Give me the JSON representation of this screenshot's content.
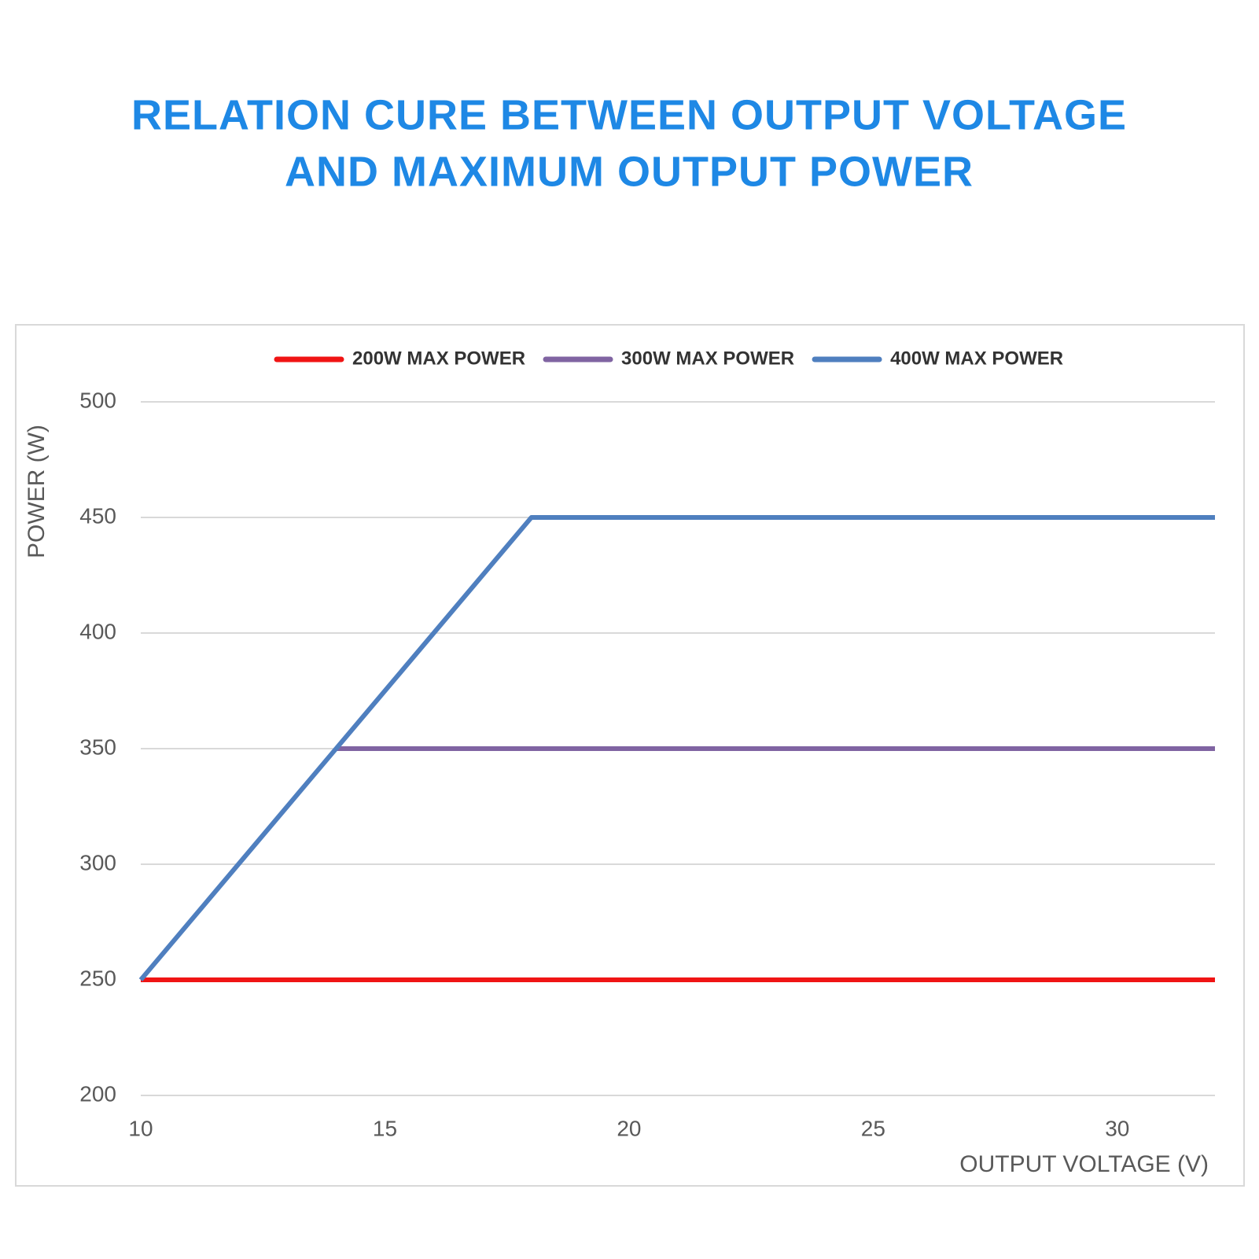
{
  "chart_data": {
    "type": "line",
    "title": [
      "RELATION CURE BETWEEN OUTPUT VOLTAGE",
      "AND MAXIMUM OUTPUT POWER"
    ],
    "x_label": "OUTPUT VOLTAGE (V)",
    "y_label": "POWER (W)",
    "x": [
      10,
      14,
      18,
      32
    ],
    "series": [
      {
        "name": "200W MAX POWER",
        "color": "#f01414",
        "values": [
          250,
          250,
          250,
          250
        ]
      },
      {
        "name": "300W MAX POWER",
        "color": "#8064a2",
        "values": [
          null,
          350,
          350,
          350
        ]
      },
      {
        "name": "400W MAX POWER",
        "color": "#4f7fbf",
        "values": [
          250,
          350,
          450,
          450
        ]
      }
    ],
    "xlim": [
      10,
      32
    ],
    "xticks": [
      10,
      15,
      20,
      25,
      30
    ],
    "ylim": [
      200,
      500
    ],
    "yticks": [
      200,
      250,
      300,
      350,
      400,
      450,
      500
    ],
    "grid": true,
    "legend": "top"
  }
}
